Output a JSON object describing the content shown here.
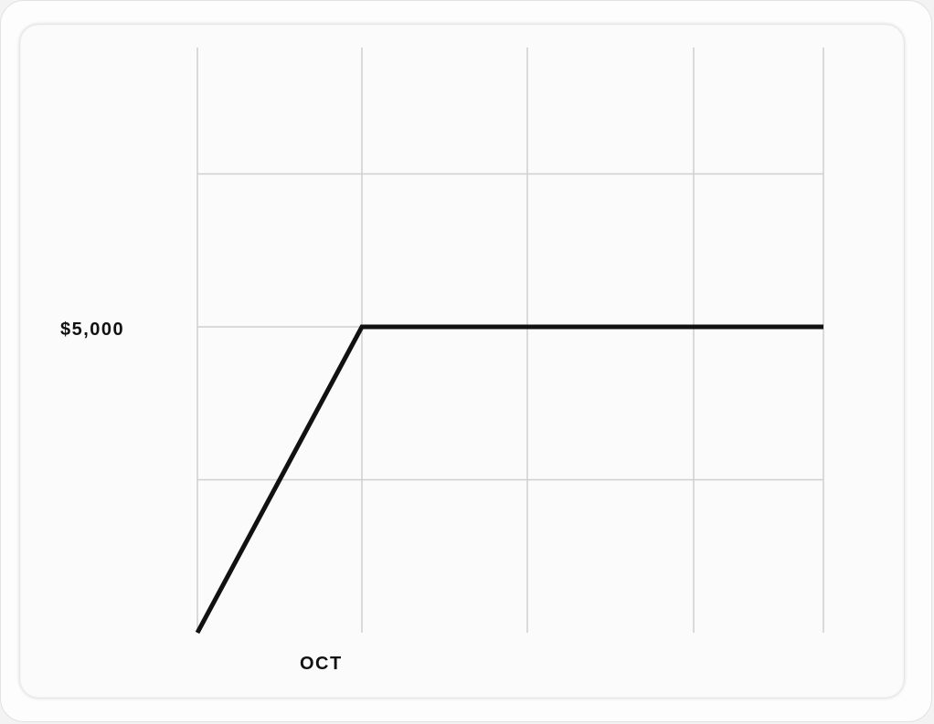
{
  "chart_data": {
    "type": "line",
    "title": "",
    "xlabel": "",
    "ylabel": "",
    "categories": [
      "",
      "OCT",
      "",
      "",
      ""
    ],
    "x_tick_labels": [
      "OCT"
    ],
    "y_tick_labels": [
      "$5,000"
    ],
    "ylim": [
      0,
      7500
    ],
    "grid": true,
    "series": [
      {
        "color": "#111111",
        "values": [
          0,
          5000,
          5000,
          5000,
          5000
        ]
      }
    ]
  },
  "colors": {
    "line": "#111111",
    "grid": "#cfcfcf",
    "card": "#fbfbfb"
  }
}
